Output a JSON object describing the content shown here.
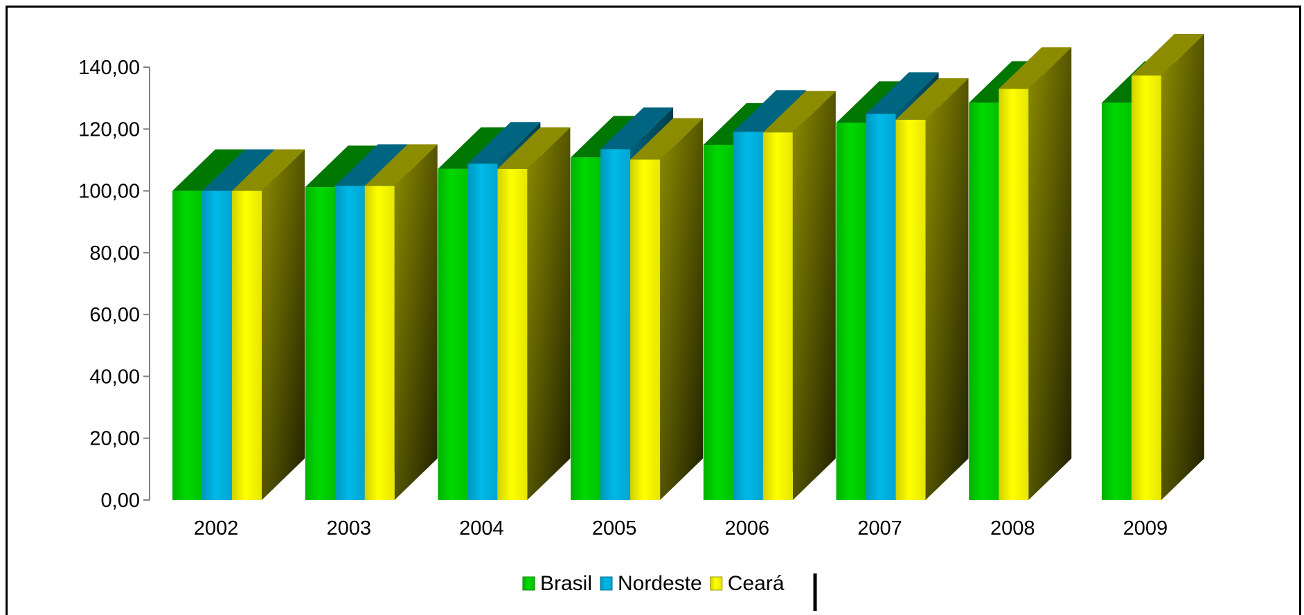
{
  "chart_data": {
    "type": "bar",
    "style": "3d-clustered-column",
    "categories": [
      "2002",
      "2003",
      "2004",
      "2005",
      "2006",
      "2007",
      "2008",
      "2009"
    ],
    "series": [
      {
        "name": "Brasil",
        "color": "#00d800",
        "values": [
          100.0,
          101.2,
          107.1,
          110.8,
          114.9,
          122.0,
          128.5,
          128.5
        ]
      },
      {
        "name": "Nordeste",
        "color": "#00b8e8",
        "values": [
          100.0,
          101.6,
          108.8,
          113.5,
          119.1,
          124.9,
          null,
          null
        ]
      },
      {
        "name": "Ceará",
        "color": "#ffff00",
        "values": [
          100.0,
          101.6,
          107.1,
          110.1,
          118.9,
          123.0,
          133.0,
          137.3
        ]
      }
    ],
    "ylim": [
      0,
      140
    ],
    "yticks": [
      "0,00",
      "20,00",
      "40,00",
      "60,00",
      "80,00",
      "100,00",
      "120,00",
      "140,00"
    ],
    "legend_position": "bottom",
    "grid": false,
    "title": "",
    "xlabel": "",
    "ylabel": ""
  }
}
